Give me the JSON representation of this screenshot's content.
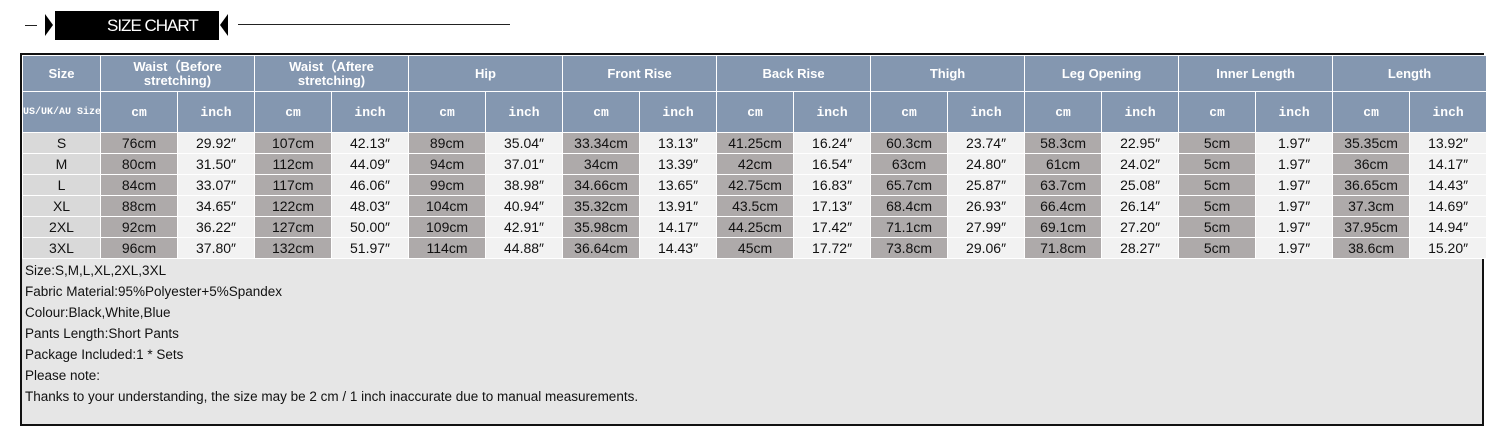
{
  "title": "SIZE CHART",
  "colors": {
    "header": "#8497b0",
    "cm_cell": "#aeaaaa",
    "inch_cell": "#f2f2f2",
    "notes_bg": "#e6e6e6"
  },
  "table": {
    "size_header": "Size",
    "size_subheader": "US/UK/AU Size",
    "groups": [
      "Waist（Before stretching)",
      "Waist（Aftere stretching)",
      "Hip",
      "Front Rise",
      "Back Rise",
      "Thigh",
      "Leg Opening",
      "Inner Length",
      "Length"
    ],
    "unit_cm": "cm",
    "unit_inch": "inch",
    "rows": [
      [
        "S",
        "76cm",
        "29.92″",
        "107cm",
        "42.13″",
        "89cm",
        "35.04″",
        "33.34cm",
        "13.13″",
        "41.25cm",
        "16.24″",
        "60.3cm",
        "23.74″",
        "58.3cm",
        "22.95″",
        "5cm",
        "1.97″",
        "35.35cm",
        "13.92″"
      ],
      [
        "M",
        "80cm",
        "31.50″",
        "112cm",
        "44.09″",
        "94cm",
        "37.01″",
        "34cm",
        "13.39″",
        "42cm",
        "16.54″",
        "63cm",
        "24.80″",
        "61cm",
        "24.02″",
        "5cm",
        "1.97″",
        "36cm",
        "14.17″"
      ],
      [
        "L",
        "84cm",
        "33.07″",
        "117cm",
        "46.06″",
        "99cm",
        "38.98″",
        "34.66cm",
        "13.65″",
        "42.75cm",
        "16.83″",
        "65.7cm",
        "25.87″",
        "63.7cm",
        "25.08″",
        "5cm",
        "1.97″",
        "36.65cm",
        "14.43″"
      ],
      [
        "XL",
        "88cm",
        "34.65″",
        "122cm",
        "48.03″",
        "104cm",
        "40.94″",
        "35.32cm",
        "13.91″",
        "43.5cm",
        "17.13″",
        "68.4cm",
        "26.93″",
        "66.4cm",
        "26.14″",
        "5cm",
        "1.97″",
        "37.3cm",
        "14.69″"
      ],
      [
        "2XL",
        "92cm",
        "36.22″",
        "127cm",
        "50.00″",
        "109cm",
        "42.91″",
        "35.98cm",
        "14.17″",
        "44.25cm",
        "17.42″",
        "71.1cm",
        "27.99″",
        "69.1cm",
        "27.20″",
        "5cm",
        "1.97″",
        "37.95cm",
        "14.94″"
      ],
      [
        "3XL",
        "96cm",
        "37.80″",
        "132cm",
        "51.97″",
        "114cm",
        "44.88″",
        "36.64cm",
        "14.43″",
        "45cm",
        "17.72″",
        "73.8cm",
        "29.06″",
        "71.8cm",
        "28.27″",
        "5cm",
        "1.97″",
        "38.6cm",
        "15.20″"
      ]
    ]
  },
  "notes": [
    "Size:S,M,L,XL,2XL,3XL",
    "Fabric Material:95%Polyester+5%Spandex",
    "Colour:Black,White,Blue",
    "Pants Length:Short Pants",
    "Package Included:1 * Sets",
    "Please note:",
    "Thanks to your understanding, the size may be 2 cm / 1 inch inaccurate due to manual measurements."
  ]
}
